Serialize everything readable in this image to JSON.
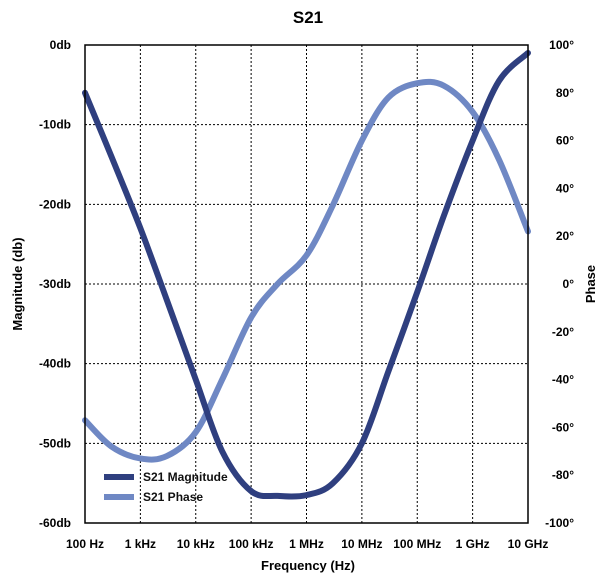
{
  "chart_data": {
    "type": "line",
    "title": "S21",
    "xlabel": "Frequency (Hz)",
    "ylabel": "Magnitude (db)",
    "y2label": "Phase",
    "x_scale": "log",
    "xlim": [
      100,
      10000000000
    ],
    "ylim": [
      -60,
      0
    ],
    "y2lim": [
      -100,
      100
    ],
    "x_ticks": [
      100,
      1000,
      10000,
      100000,
      1000000,
      10000000,
      100000000,
      1000000000,
      10000000000
    ],
    "x_tick_labels": [
      "100 Hz",
      "1 kHz",
      "10 kHz",
      "100 kHz",
      "1 MHz",
      "10 MHz",
      "100 MHz",
      "1 GHz",
      "10 GHz"
    ],
    "y_ticks": [
      0,
      -10,
      -20,
      -30,
      -40,
      -50,
      -60
    ],
    "y_tick_labels": [
      "0db",
      "-10db",
      "-20db",
      "-30db",
      "-40db",
      "-50db",
      "-60db"
    ],
    "y2_ticks": [
      100,
      80,
      60,
      40,
      20,
      0,
      -20,
      -40,
      -60,
      -80,
      -100
    ],
    "y2_tick_labels": [
      "100°",
      "80°",
      "60°",
      "40°",
      "20°",
      "0°",
      "-20°",
      "-40°",
      "-60°",
      "-80°",
      "-100°"
    ],
    "grid": true,
    "legend_position": "bottom-left",
    "series": [
      {
        "name": "S21 Magnitude",
        "axis": "left",
        "color": "#2f3f7f",
        "x": [
          100,
          300,
          1000,
          3000,
          10000,
          30000,
          100000,
          300000,
          1000000,
          3000000,
          10000000,
          30000000,
          100000000,
          300000000,
          1000000000,
          3000000000,
          10000000000
        ],
        "y": [
          -6,
          -14,
          -23,
          -32,
          -42,
          -51,
          -56,
          -56.6,
          -56.5,
          -55,
          -50,
          -41,
          -31,
          -21.5,
          -12,
          -4.5,
          -1
        ]
      },
      {
        "name": "S21 Phase",
        "axis": "right",
        "color": "#6f88c4",
        "x": [
          100,
          300,
          1000,
          3000,
          10000,
          30000,
          100000,
          300000,
          1000000,
          3000000,
          10000000,
          30000000,
          100000000,
          300000000,
          1000000000,
          3000000000,
          10000000000
        ],
        "y": [
          -57,
          -68,
          -73,
          -72,
          -62,
          -40,
          -14,
          0,
          12,
          33,
          60,
          78,
          84,
          83,
          72,
          52,
          22
        ]
      }
    ]
  }
}
